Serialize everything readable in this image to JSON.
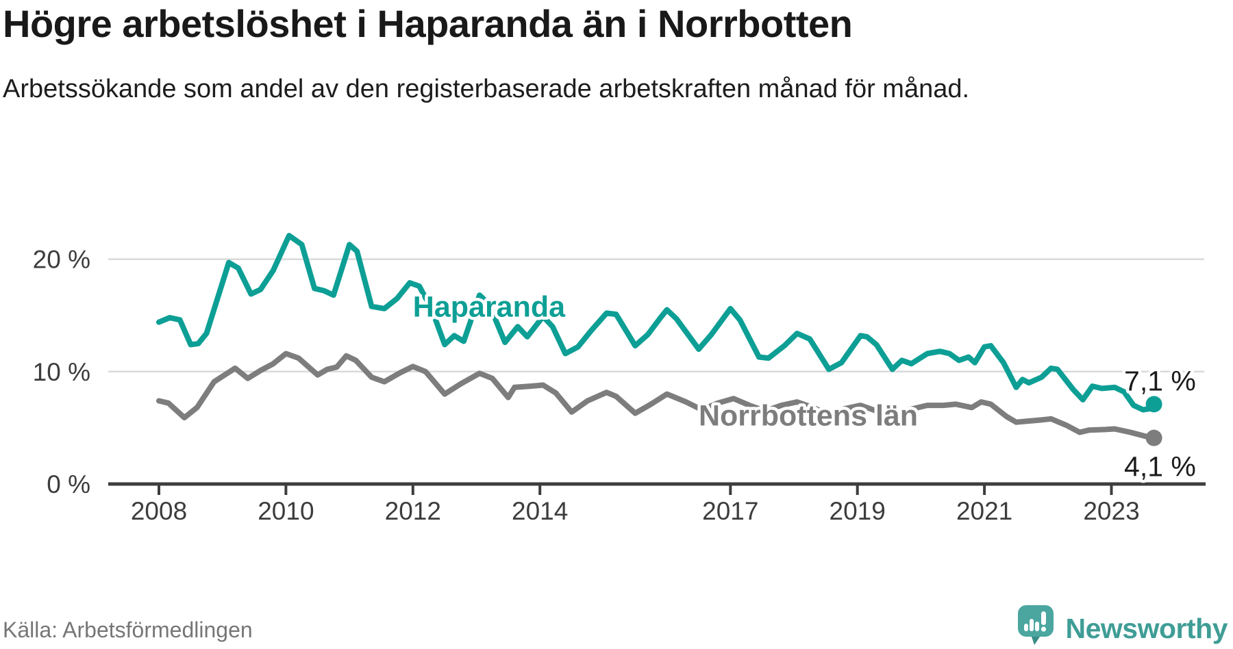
{
  "header": {
    "title": "Högre arbetslöshet i Haparanda än i Norrbotten",
    "subtitle": "Arbetssökande som andel av den registerbaserade arbetskraften månad för månad."
  },
  "footer": {
    "source": "Källa: Arbetsförmedlingen",
    "brand": "Newsworthy",
    "brand_icon": "speech-bubble-bar-chart",
    "brand_color": "#3f9d96",
    "brand_icon_color": "#4ba6a0"
  },
  "chart_data": {
    "type": "line",
    "title": "Högre arbetslöshet i Haparanda än i Norrbotten",
    "xlabel": "",
    "ylabel": "Arbetssökande som andel av den registerbaserade arbetskraften (%)",
    "xlim": [
      2007.6,
      2024.4
    ],
    "ylim": [
      0,
      23
    ],
    "grid": "horizontal",
    "legend_position": "inline-labels",
    "colors": {
      "gridline": "#d9d9d9",
      "axis": "#3d3d3d",
      "tick_text": "#3c3c3c"
    },
    "y_ticks": [
      {
        "value": 0,
        "label": "0 %"
      },
      {
        "value": 10,
        "label": "10 %"
      },
      {
        "value": 20,
        "label": "20 %"
      }
    ],
    "x_ticks": [
      {
        "value": 2008,
        "label": "2008"
      },
      {
        "value": 2010,
        "label": "2010"
      },
      {
        "value": 2012,
        "label": "2012"
      },
      {
        "value": 2014,
        "label": "2014"
      },
      {
        "value": 2017,
        "label": "2017"
      },
      {
        "value": 2019,
        "label": "2019"
      },
      {
        "value": 2021,
        "label": "2021"
      },
      {
        "value": 2023,
        "label": "2023"
      }
    ],
    "series": [
      {
        "name": "Haparanda",
        "label": "Haparanda",
        "label_pos": [
          2012.0,
          14.9
        ],
        "end_label": "7,1 %",
        "end_label_pos": [
          2023.2,
          8.3
        ],
        "end_value": 7.1,
        "color": "#0d9f95",
        "points": [
          [
            2008.0,
            14.4
          ],
          [
            2008.17,
            14.8
          ],
          [
            2008.33,
            14.6
          ],
          [
            2008.5,
            12.4
          ],
          [
            2008.62,
            12.5
          ],
          [
            2008.75,
            13.4
          ],
          [
            2009.1,
            19.7
          ],
          [
            2009.25,
            19.2
          ],
          [
            2009.45,
            16.9
          ],
          [
            2009.6,
            17.3
          ],
          [
            2009.8,
            19.0
          ],
          [
            2010.05,
            22.1
          ],
          [
            2010.25,
            21.3
          ],
          [
            2010.45,
            17.4
          ],
          [
            2010.6,
            17.2
          ],
          [
            2010.75,
            16.8
          ],
          [
            2011.0,
            21.3
          ],
          [
            2011.12,
            20.7
          ],
          [
            2011.35,
            15.8
          ],
          [
            2011.55,
            15.6
          ],
          [
            2011.75,
            16.5
          ],
          [
            2011.95,
            17.9
          ],
          [
            2012.1,
            17.6
          ],
          [
            2012.3,
            15.5
          ],
          [
            2012.5,
            12.4
          ],
          [
            2012.65,
            13.2
          ],
          [
            2012.8,
            12.7
          ],
          [
            2013.05,
            16.8
          ],
          [
            2013.2,
            16.0
          ],
          [
            2013.45,
            12.6
          ],
          [
            2013.65,
            14.0
          ],
          [
            2013.8,
            13.1
          ],
          [
            2014.05,
            14.9
          ],
          [
            2014.2,
            14.0
          ],
          [
            2014.4,
            11.6
          ],
          [
            2014.6,
            12.2
          ],
          [
            2014.8,
            13.6
          ],
          [
            2015.05,
            15.2
          ],
          [
            2015.2,
            15.1
          ],
          [
            2015.5,
            12.3
          ],
          [
            2015.7,
            13.3
          ],
          [
            2015.9,
            14.8
          ],
          [
            2016.0,
            15.5
          ],
          [
            2016.15,
            14.7
          ],
          [
            2016.5,
            12.0
          ],
          [
            2016.7,
            13.3
          ],
          [
            2017.0,
            15.6
          ],
          [
            2017.15,
            14.6
          ],
          [
            2017.45,
            11.3
          ],
          [
            2017.6,
            11.2
          ],
          [
            2017.85,
            12.3
          ],
          [
            2018.05,
            13.4
          ],
          [
            2018.25,
            12.9
          ],
          [
            2018.55,
            10.2
          ],
          [
            2018.75,
            10.8
          ],
          [
            2019.05,
            13.2
          ],
          [
            2019.15,
            13.1
          ],
          [
            2019.3,
            12.4
          ],
          [
            2019.55,
            10.2
          ],
          [
            2019.7,
            11.0
          ],
          [
            2019.85,
            10.7
          ],
          [
            2020.1,
            11.6
          ],
          [
            2020.3,
            11.8
          ],
          [
            2020.45,
            11.6
          ],
          [
            2020.6,
            11.0
          ],
          [
            2020.75,
            11.3
          ],
          [
            2020.85,
            10.8
          ],
          [
            2021.0,
            12.2
          ],
          [
            2021.1,
            12.3
          ],
          [
            2021.3,
            10.8
          ],
          [
            2021.5,
            8.6
          ],
          [
            2021.6,
            9.3
          ],
          [
            2021.7,
            9.0
          ],
          [
            2021.9,
            9.5
          ],
          [
            2022.05,
            10.3
          ],
          [
            2022.15,
            10.2
          ],
          [
            2022.4,
            8.4
          ],
          [
            2022.55,
            7.5
          ],
          [
            2022.7,
            8.7
          ],
          [
            2022.85,
            8.5
          ],
          [
            2023.05,
            8.6
          ],
          [
            2023.2,
            8.2
          ],
          [
            2023.35,
            7.0
          ],
          [
            2023.5,
            6.6
          ],
          [
            2023.6,
            6.7
          ],
          [
            2023.67,
            7.1
          ]
        ]
      },
      {
        "name": "Norrbottens län",
        "label": "Norrbottens län",
        "label_pos": [
          2016.5,
          5.2
        ],
        "end_label": "4,1 %",
        "end_label_pos": [
          2023.2,
          0.7
        ],
        "end_value": 4.1,
        "color": "#7d7d7d",
        "points": [
          [
            2008.0,
            7.4
          ],
          [
            2008.15,
            7.2
          ],
          [
            2008.4,
            5.9
          ],
          [
            2008.6,
            6.8
          ],
          [
            2008.87,
            9.1
          ],
          [
            2009.2,
            10.3
          ],
          [
            2009.4,
            9.4
          ],
          [
            2009.6,
            10.1
          ],
          [
            2009.8,
            10.7
          ],
          [
            2010.0,
            11.6
          ],
          [
            2010.2,
            11.2
          ],
          [
            2010.5,
            9.7
          ],
          [
            2010.65,
            10.2
          ],
          [
            2010.8,
            10.4
          ],
          [
            2010.95,
            11.4
          ],
          [
            2011.1,
            11.0
          ],
          [
            2011.35,
            9.5
          ],
          [
            2011.55,
            9.1
          ],
          [
            2011.8,
            9.9
          ],
          [
            2012.0,
            10.45
          ],
          [
            2012.2,
            10.0
          ],
          [
            2012.5,
            8.0
          ],
          [
            2012.75,
            8.9
          ],
          [
            2013.05,
            9.85
          ],
          [
            2013.25,
            9.4
          ],
          [
            2013.5,
            7.7
          ],
          [
            2013.6,
            8.6
          ],
          [
            2013.85,
            8.7
          ],
          [
            2014.05,
            8.8
          ],
          [
            2014.25,
            8.1
          ],
          [
            2014.5,
            6.4
          ],
          [
            2014.75,
            7.4
          ],
          [
            2015.05,
            8.15
          ],
          [
            2015.2,
            7.8
          ],
          [
            2015.5,
            6.3
          ],
          [
            2015.75,
            7.1
          ],
          [
            2016.0,
            8.0
          ],
          [
            2016.3,
            7.3
          ],
          [
            2016.55,
            6.6
          ],
          [
            2016.8,
            7.2
          ],
          [
            2017.05,
            7.6
          ],
          [
            2017.3,
            7.0
          ],
          [
            2017.55,
            6.5
          ],
          [
            2017.8,
            7.0
          ],
          [
            2018.05,
            7.3
          ],
          [
            2018.3,
            6.8
          ],
          [
            2018.55,
            6.2
          ],
          [
            2018.8,
            6.7
          ],
          [
            2019.05,
            7.0
          ],
          [
            2019.3,
            6.5
          ],
          [
            2019.55,
            6.1
          ],
          [
            2019.8,
            6.6
          ],
          [
            2020.1,
            7.0
          ],
          [
            2020.35,
            7.0
          ],
          [
            2020.55,
            7.1
          ],
          [
            2020.8,
            6.8
          ],
          [
            2020.95,
            7.3
          ],
          [
            2021.1,
            7.1
          ],
          [
            2021.35,
            6.0
          ],
          [
            2021.5,
            5.5
          ],
          [
            2021.7,
            5.6
          ],
          [
            2021.9,
            5.7
          ],
          [
            2022.05,
            5.8
          ],
          [
            2022.3,
            5.2
          ],
          [
            2022.5,
            4.6
          ],
          [
            2022.65,
            4.8
          ],
          [
            2022.9,
            4.85
          ],
          [
            2023.05,
            4.9
          ],
          [
            2023.3,
            4.6
          ],
          [
            2023.5,
            4.3
          ],
          [
            2023.6,
            4.15
          ],
          [
            2023.67,
            4.1
          ]
        ]
      }
    ]
  }
}
